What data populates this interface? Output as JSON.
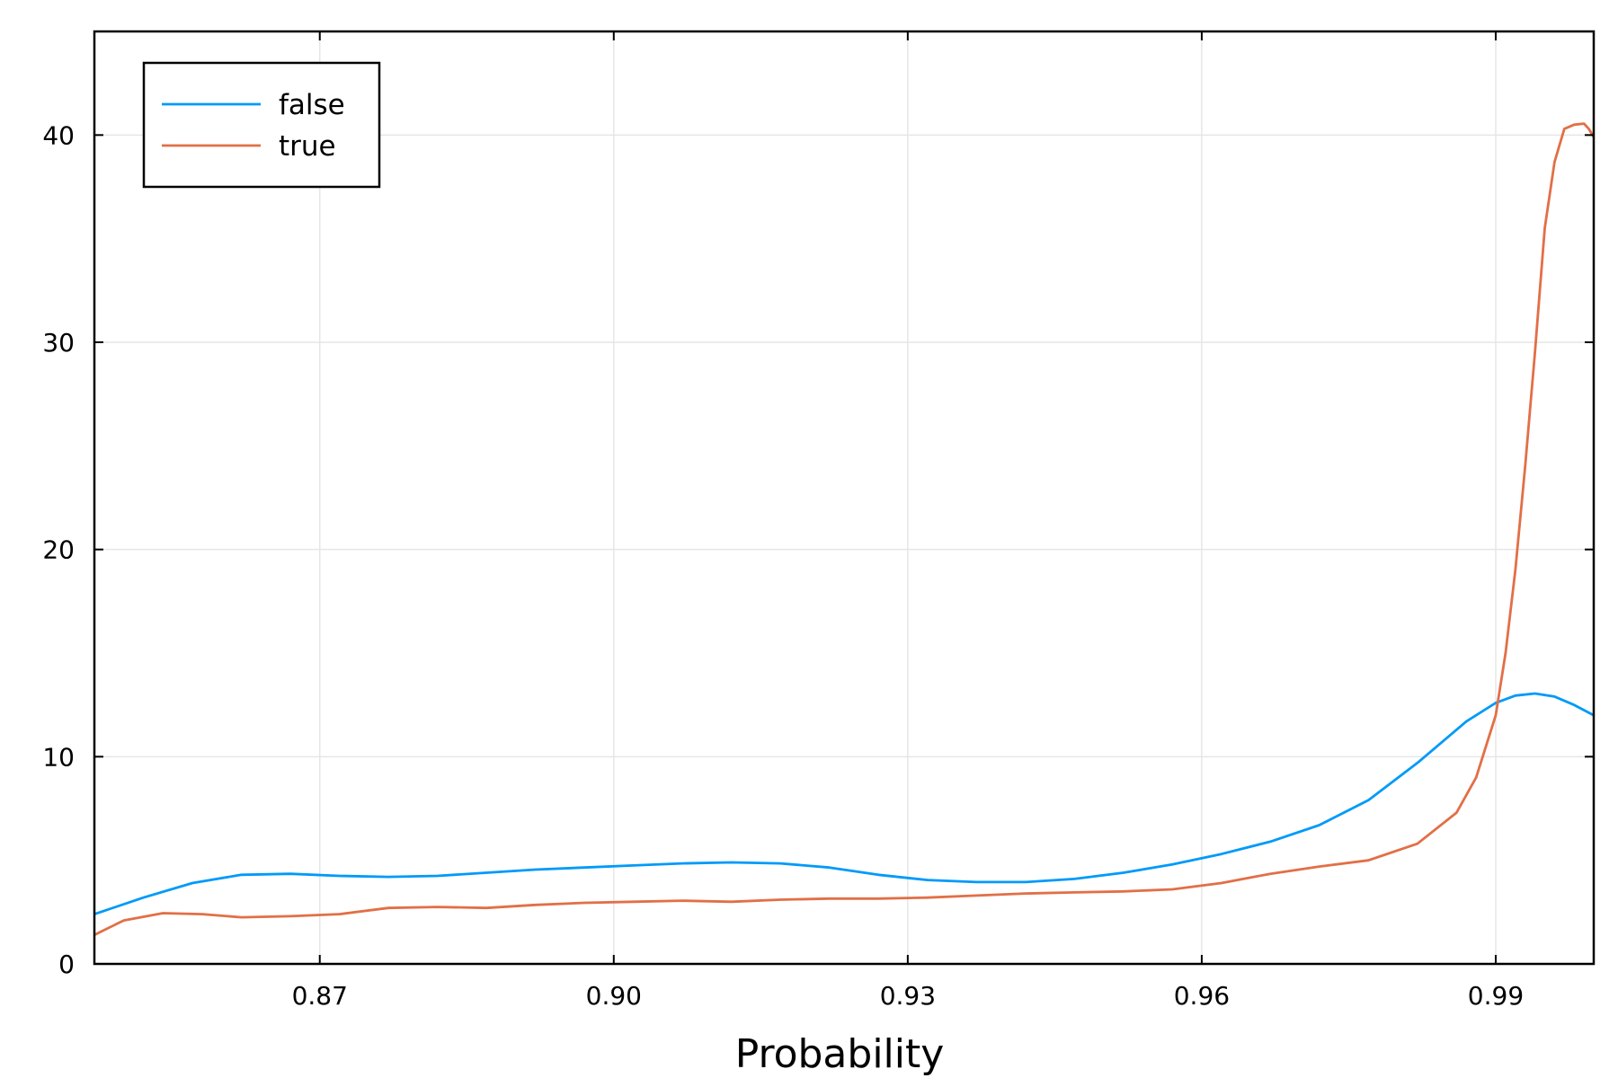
{
  "chart_data": {
    "type": "line",
    "title": "",
    "xlabel": "Probability",
    "ylabel": "",
    "xlim": [
      0.847,
      1.0
    ],
    "ylim": [
      0,
      45
    ],
    "grid": true,
    "legend_position": "top-left",
    "x_ticks": [
      0.87,
      0.9,
      0.93,
      0.96,
      0.99
    ],
    "x_tick_labels": [
      "0.87",
      "0.90",
      "0.93",
      "0.96",
      "0.99"
    ],
    "y_ticks": [
      0,
      10,
      20,
      30,
      40
    ],
    "y_tick_labels": [
      "0",
      "10",
      "20",
      "30",
      "40"
    ],
    "series": [
      {
        "name": "false",
        "color": "#009af9",
        "x": [
          0.847,
          0.852,
          0.857,
          0.862,
          0.867,
          0.872,
          0.877,
          0.882,
          0.887,
          0.892,
          0.897,
          0.902,
          0.907,
          0.912,
          0.917,
          0.922,
          0.927,
          0.932,
          0.937,
          0.942,
          0.947,
          0.952,
          0.957,
          0.962,
          0.967,
          0.972,
          0.977,
          0.982,
          0.987,
          0.99,
          0.992,
          0.994,
          0.996,
          0.998,
          1.0
        ],
        "y": [
          2.4,
          3.2,
          3.9,
          4.3,
          4.35,
          4.25,
          4.2,
          4.25,
          4.4,
          4.55,
          4.65,
          4.75,
          4.85,
          4.9,
          4.85,
          4.65,
          4.3,
          4.05,
          3.95,
          3.95,
          4.1,
          4.4,
          4.8,
          5.3,
          5.9,
          6.7,
          7.9,
          9.7,
          11.7,
          12.6,
          12.95,
          13.05,
          12.9,
          12.5,
          12.0
        ]
      },
      {
        "name": "true",
        "color": "#e26f46",
        "x": [
          0.847,
          0.85,
          0.854,
          0.858,
          0.862,
          0.867,
          0.872,
          0.877,
          0.882,
          0.887,
          0.892,
          0.897,
          0.902,
          0.907,
          0.912,
          0.917,
          0.922,
          0.927,
          0.932,
          0.937,
          0.942,
          0.947,
          0.952,
          0.957,
          0.962,
          0.967,
          0.972,
          0.977,
          0.982,
          0.986,
          0.988,
          0.99,
          0.991,
          0.992,
          0.993,
          0.994,
          0.995,
          0.996,
          0.997,
          0.998,
          0.999,
          0.9995,
          1.0
        ],
        "y": [
          1.4,
          2.1,
          2.45,
          2.4,
          2.25,
          2.3,
          2.4,
          2.7,
          2.75,
          2.7,
          2.85,
          2.95,
          3.0,
          3.05,
          3.0,
          3.1,
          3.15,
          3.15,
          3.2,
          3.3,
          3.4,
          3.45,
          3.5,
          3.6,
          3.9,
          4.35,
          4.7,
          5.0,
          5.8,
          7.3,
          9.0,
          12.0,
          15.0,
          19.0,
          24.0,
          29.5,
          35.5,
          38.7,
          40.3,
          40.5,
          40.55,
          40.3,
          39.9
        ]
      }
    ]
  }
}
